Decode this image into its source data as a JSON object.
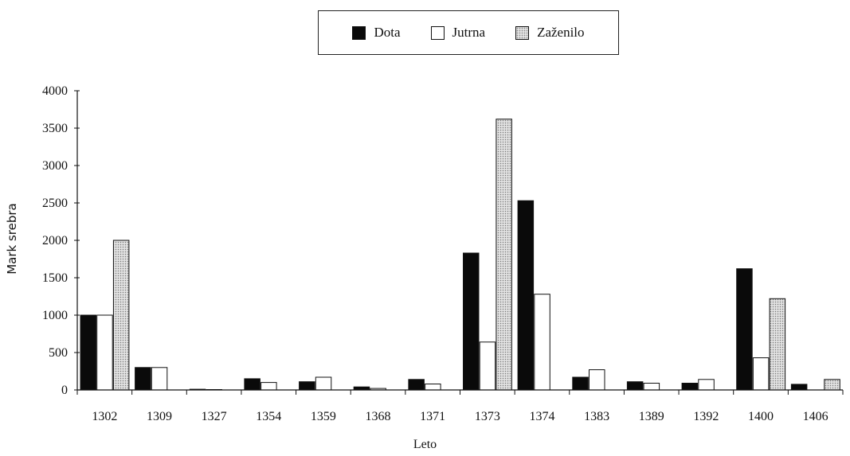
{
  "legend": {
    "items": [
      {
        "label": "Dota",
        "color": "#0a0a0a"
      },
      {
        "label": "Jutrna",
        "color": "#ffffff"
      },
      {
        "label": "Zaženilo",
        "color": "#d0d0d0",
        "pattern": "dotted"
      }
    ]
  },
  "chart_data": {
    "type": "bar",
    "xlabel": "Leto",
    "ylabel": "Mark srebra",
    "ylim": [
      0,
      4000
    ],
    "yticks": [
      0,
      500,
      1000,
      1500,
      2000,
      2500,
      3000,
      3500,
      4000
    ],
    "grid": false,
    "legend_position": "top-center",
    "categories": [
      "1302",
      "1309",
      "1327",
      "1354",
      "1359",
      "1368",
      "1371",
      "1373",
      "1374",
      "1383",
      "1389",
      "1392",
      "1400",
      "1406"
    ],
    "series": [
      {
        "name": "Dota",
        "values": [
          1000,
          300,
          10,
          150,
          110,
          40,
          140,
          1830,
          2530,
          170,
          110,
          90,
          1620,
          75
        ]
      },
      {
        "name": "Jutrna",
        "values": [
          1000,
          300,
          5,
          100,
          170,
          20,
          80,
          640,
          1280,
          270,
          90,
          140,
          430,
          0
        ]
      },
      {
        "name": "Zaženilo",
        "values": [
          2000,
          0,
          0,
          0,
          0,
          0,
          0,
          3620,
          0,
          0,
          0,
          0,
          1220,
          140
        ]
      }
    ]
  }
}
